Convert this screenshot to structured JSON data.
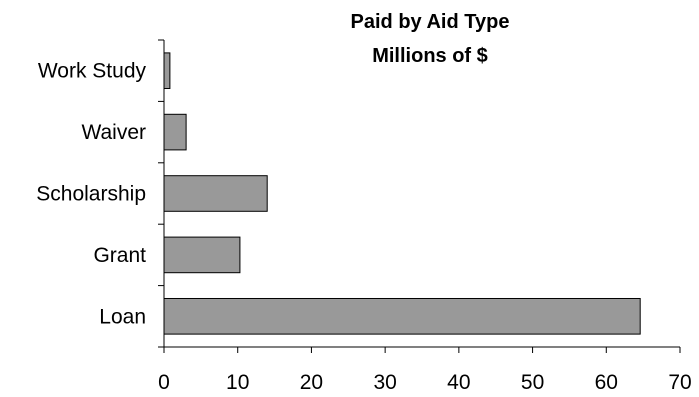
{
  "chart_data": {
    "type": "bar",
    "orientation": "horizontal",
    "title_lines": [
      "Paid by Aid Type",
      "Millions of $"
    ],
    "categories": [
      "Work Study",
      "Waiver",
      "Scholarship",
      "Grant",
      "Loan"
    ],
    "values": [
      0.8,
      3.0,
      14.0,
      10.3,
      64.6
    ],
    "xlim": [
      0,
      70
    ],
    "xticks": [
      0,
      10,
      20,
      30,
      40,
      50,
      60,
      70
    ],
    "grid": false,
    "legend": "none",
    "bar_color": "#999999"
  }
}
